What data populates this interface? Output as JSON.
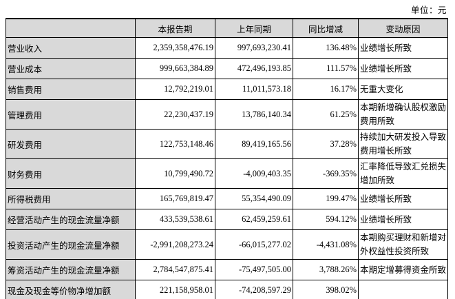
{
  "unit_label": "单位：元",
  "table": {
    "headers": [
      "",
      "本报告期",
      "上年同期",
      "同比增减",
      "变动原因"
    ],
    "rows": [
      {
        "label": "营业收入",
        "current": "2,359,358,476.19",
        "prior": "997,693,230.41",
        "change": "136.48%",
        "reason": "业绩增长所致"
      },
      {
        "label": "营业成本",
        "current": "999,663,384.89",
        "prior": "472,496,193.85",
        "change": "111.57%",
        "reason": "业绩增长所致"
      },
      {
        "label": "销售费用",
        "current": "12,792,219.01",
        "prior": "11,011,573.18",
        "change": "16.17%",
        "reason": "无重大变化"
      },
      {
        "label": "管理费用",
        "current": "22,230,437.19",
        "prior": "13,786,140.34",
        "change": "61.25%",
        "reason": "本期新增确认股权激励费用所致"
      },
      {
        "label": "研发费用",
        "current": "122,753,148.46",
        "prior": "89,419,165.56",
        "change": "37.28%",
        "reason": "持续加大研发投入导致费用增长所致"
      },
      {
        "label": "财务费用",
        "current": "10,799,490.72",
        "prior": "-4,009,403.35",
        "change": "-369.35%",
        "reason": "汇率降低导致汇兑损失增加所致"
      },
      {
        "label": "所得税费用",
        "current": "165,769,819.47",
        "prior": "55,354,490.09",
        "change": "199.47%",
        "reason": "业绩增长所致"
      },
      {
        "label": "经营活动产生的现金流量净额",
        "current": "433,539,538.61",
        "prior": "62,459,259.61",
        "change": "594.12%",
        "reason": "业绩增长所致"
      },
      {
        "label": "投资活动产生的现金流量净额",
        "current": "-2,991,208,273.24",
        "prior": "-66,015,277.02",
        "change": "-4,431.08%",
        "reason": "本期购买理财和新增对外权益性投资所致"
      },
      {
        "label": "筹资活动产生的现金流量净额",
        "current": "2,784,547,875.41",
        "prior": "-75,497,505.00",
        "change": "3,788.26%",
        "reason": "本期定增募得资金所致"
      },
      {
        "label": "现金及现金等价物净增加额",
        "current": "221,158,958.01",
        "prior": "-74,208,597.29",
        "change": "398.02%",
        "reason": ""
      }
    ]
  },
  "colors": {
    "header_bg": "#d9d9d9",
    "label_bg": "#d9d9d9",
    "border": "#000000",
    "background": "#ffffff"
  }
}
